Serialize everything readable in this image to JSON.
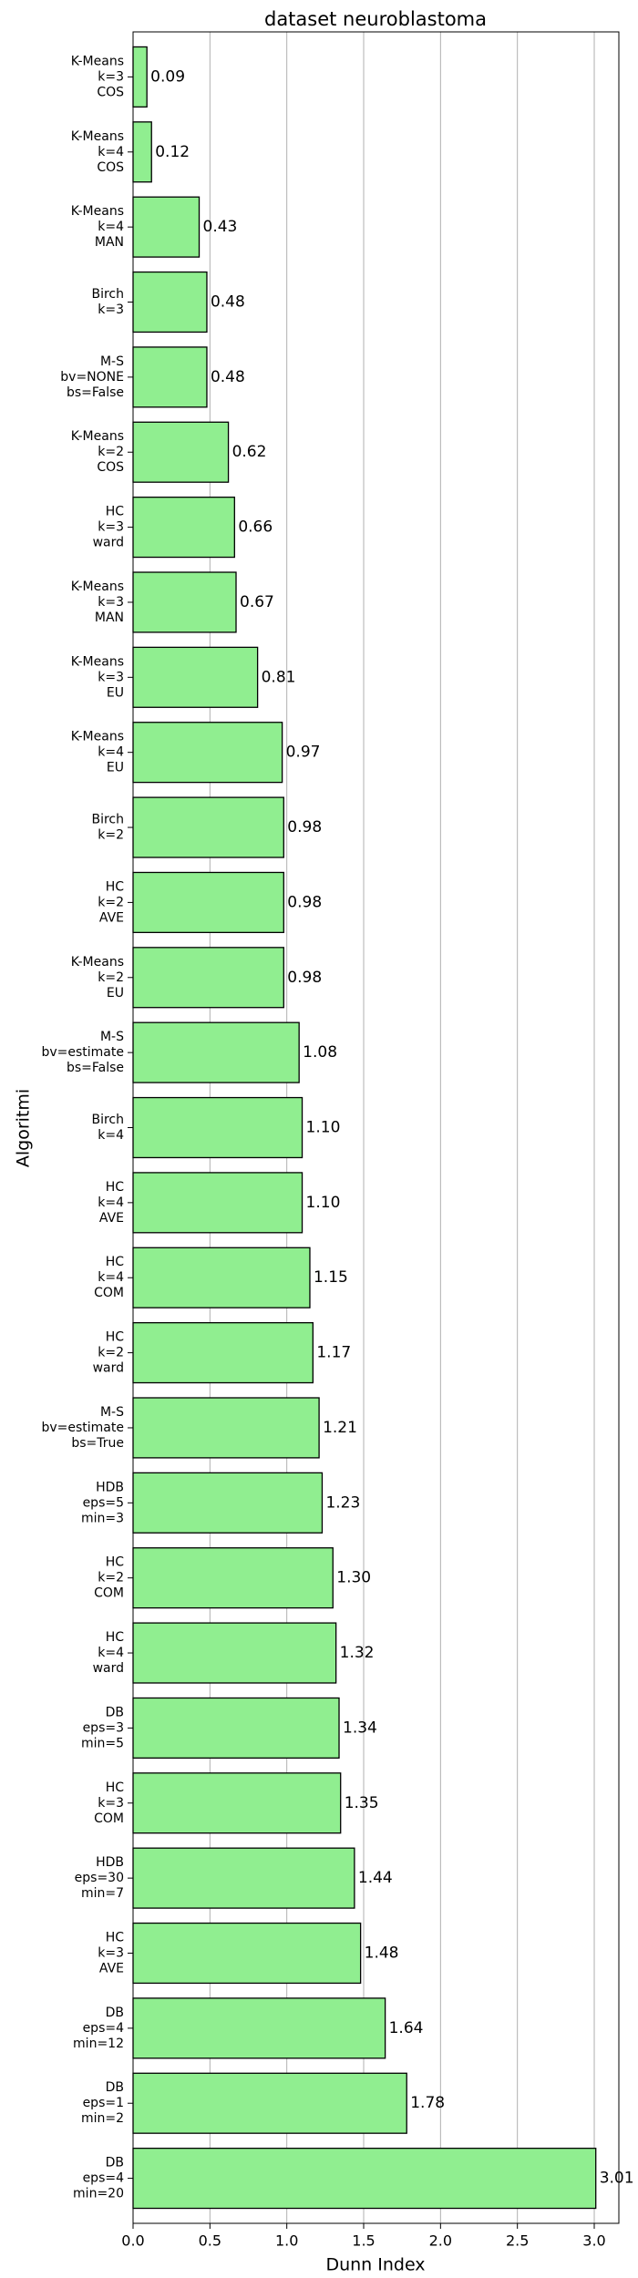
{
  "chart_data": {
    "type": "barh",
    "title": "dataset neuroblastoma",
    "x_label": "Dunn Index",
    "y_label": "Algoritmi",
    "categories": [
      [
        "K-Means",
        "k=3",
        "COS"
      ],
      [
        "K-Means",
        "k=4",
        "COS"
      ],
      [
        "K-Means",
        "k=4",
        "MAN"
      ],
      [
        "Birch",
        "k=3"
      ],
      [
        "M-S",
        "bv=NONE",
        "bs=False"
      ],
      [
        "K-Means",
        "k=2",
        "COS"
      ],
      [
        "HC",
        "k=3",
        "ward"
      ],
      [
        "K-Means",
        "k=3",
        "MAN"
      ],
      [
        "K-Means",
        "k=3",
        "EU"
      ],
      [
        "K-Means",
        "k=4",
        "EU"
      ],
      [
        "Birch",
        "k=2"
      ],
      [
        "HC",
        "k=2",
        "AVE"
      ],
      [
        "K-Means",
        "k=2",
        "EU"
      ],
      [
        "M-S",
        "bv=estimate",
        "bs=False"
      ],
      [
        "Birch",
        "k=4"
      ],
      [
        "HC",
        "k=4",
        "AVE"
      ],
      [
        "HC",
        "k=4",
        "COM"
      ],
      [
        "HC",
        "k=2",
        "ward"
      ],
      [
        "M-S",
        "bv=estimate",
        "bs=True"
      ],
      [
        "HDB",
        "eps=5",
        "min=3"
      ],
      [
        "HC",
        "k=2",
        "COM"
      ],
      [
        "HC",
        "k=4",
        "ward"
      ],
      [
        "DB",
        "eps=3",
        "min=5"
      ],
      [
        "HC",
        "k=3",
        "COM"
      ],
      [
        "HDB",
        "eps=30",
        "min=7"
      ],
      [
        "HC",
        "k=3",
        "AVE"
      ],
      [
        "DB",
        "eps=4",
        "min=12"
      ],
      [
        "DB",
        "eps=1",
        "min=2"
      ],
      [
        "DB",
        "eps=4",
        "min=20"
      ]
    ],
    "values": [
      0.09,
      0.12,
      0.43,
      0.48,
      0.48,
      0.62,
      0.66,
      0.67,
      0.81,
      0.97,
      0.98,
      0.98,
      0.98,
      1.08,
      1.1,
      1.1,
      1.15,
      1.17,
      1.21,
      1.23,
      1.3,
      1.32,
      1.34,
      1.35,
      1.44,
      1.48,
      1.64,
      1.78,
      3.01
    ],
    "value_labels": [
      "0.09",
      "0.12",
      "0.43",
      "0.48",
      "0.48",
      "0.62",
      "0.66",
      "0.67",
      "0.81",
      "0.97",
      "0.98",
      "0.98",
      "0.98",
      "1.08",
      "1.10",
      "1.10",
      "1.15",
      "1.17",
      "1.21",
      "1.23",
      "1.30",
      "1.32",
      "1.34",
      "1.35",
      "1.44",
      "1.48",
      "1.64",
      "1.78",
      "3.01"
    ],
    "color": "#90ee90",
    "edge_color": "#000000",
    "xlim": [
      0,
      3.16
    ],
    "xticks": [
      {
        "value": 0,
        "label": "0.0"
      },
      0.5,
      {
        "value": 1,
        "label": "1.0"
      },
      1.5,
      {
        "value": 2,
        "label": "2.0"
      },
      2.5,
      {
        "value": 3,
        "label": "3.0"
      }
    ],
    "grid": true
  }
}
